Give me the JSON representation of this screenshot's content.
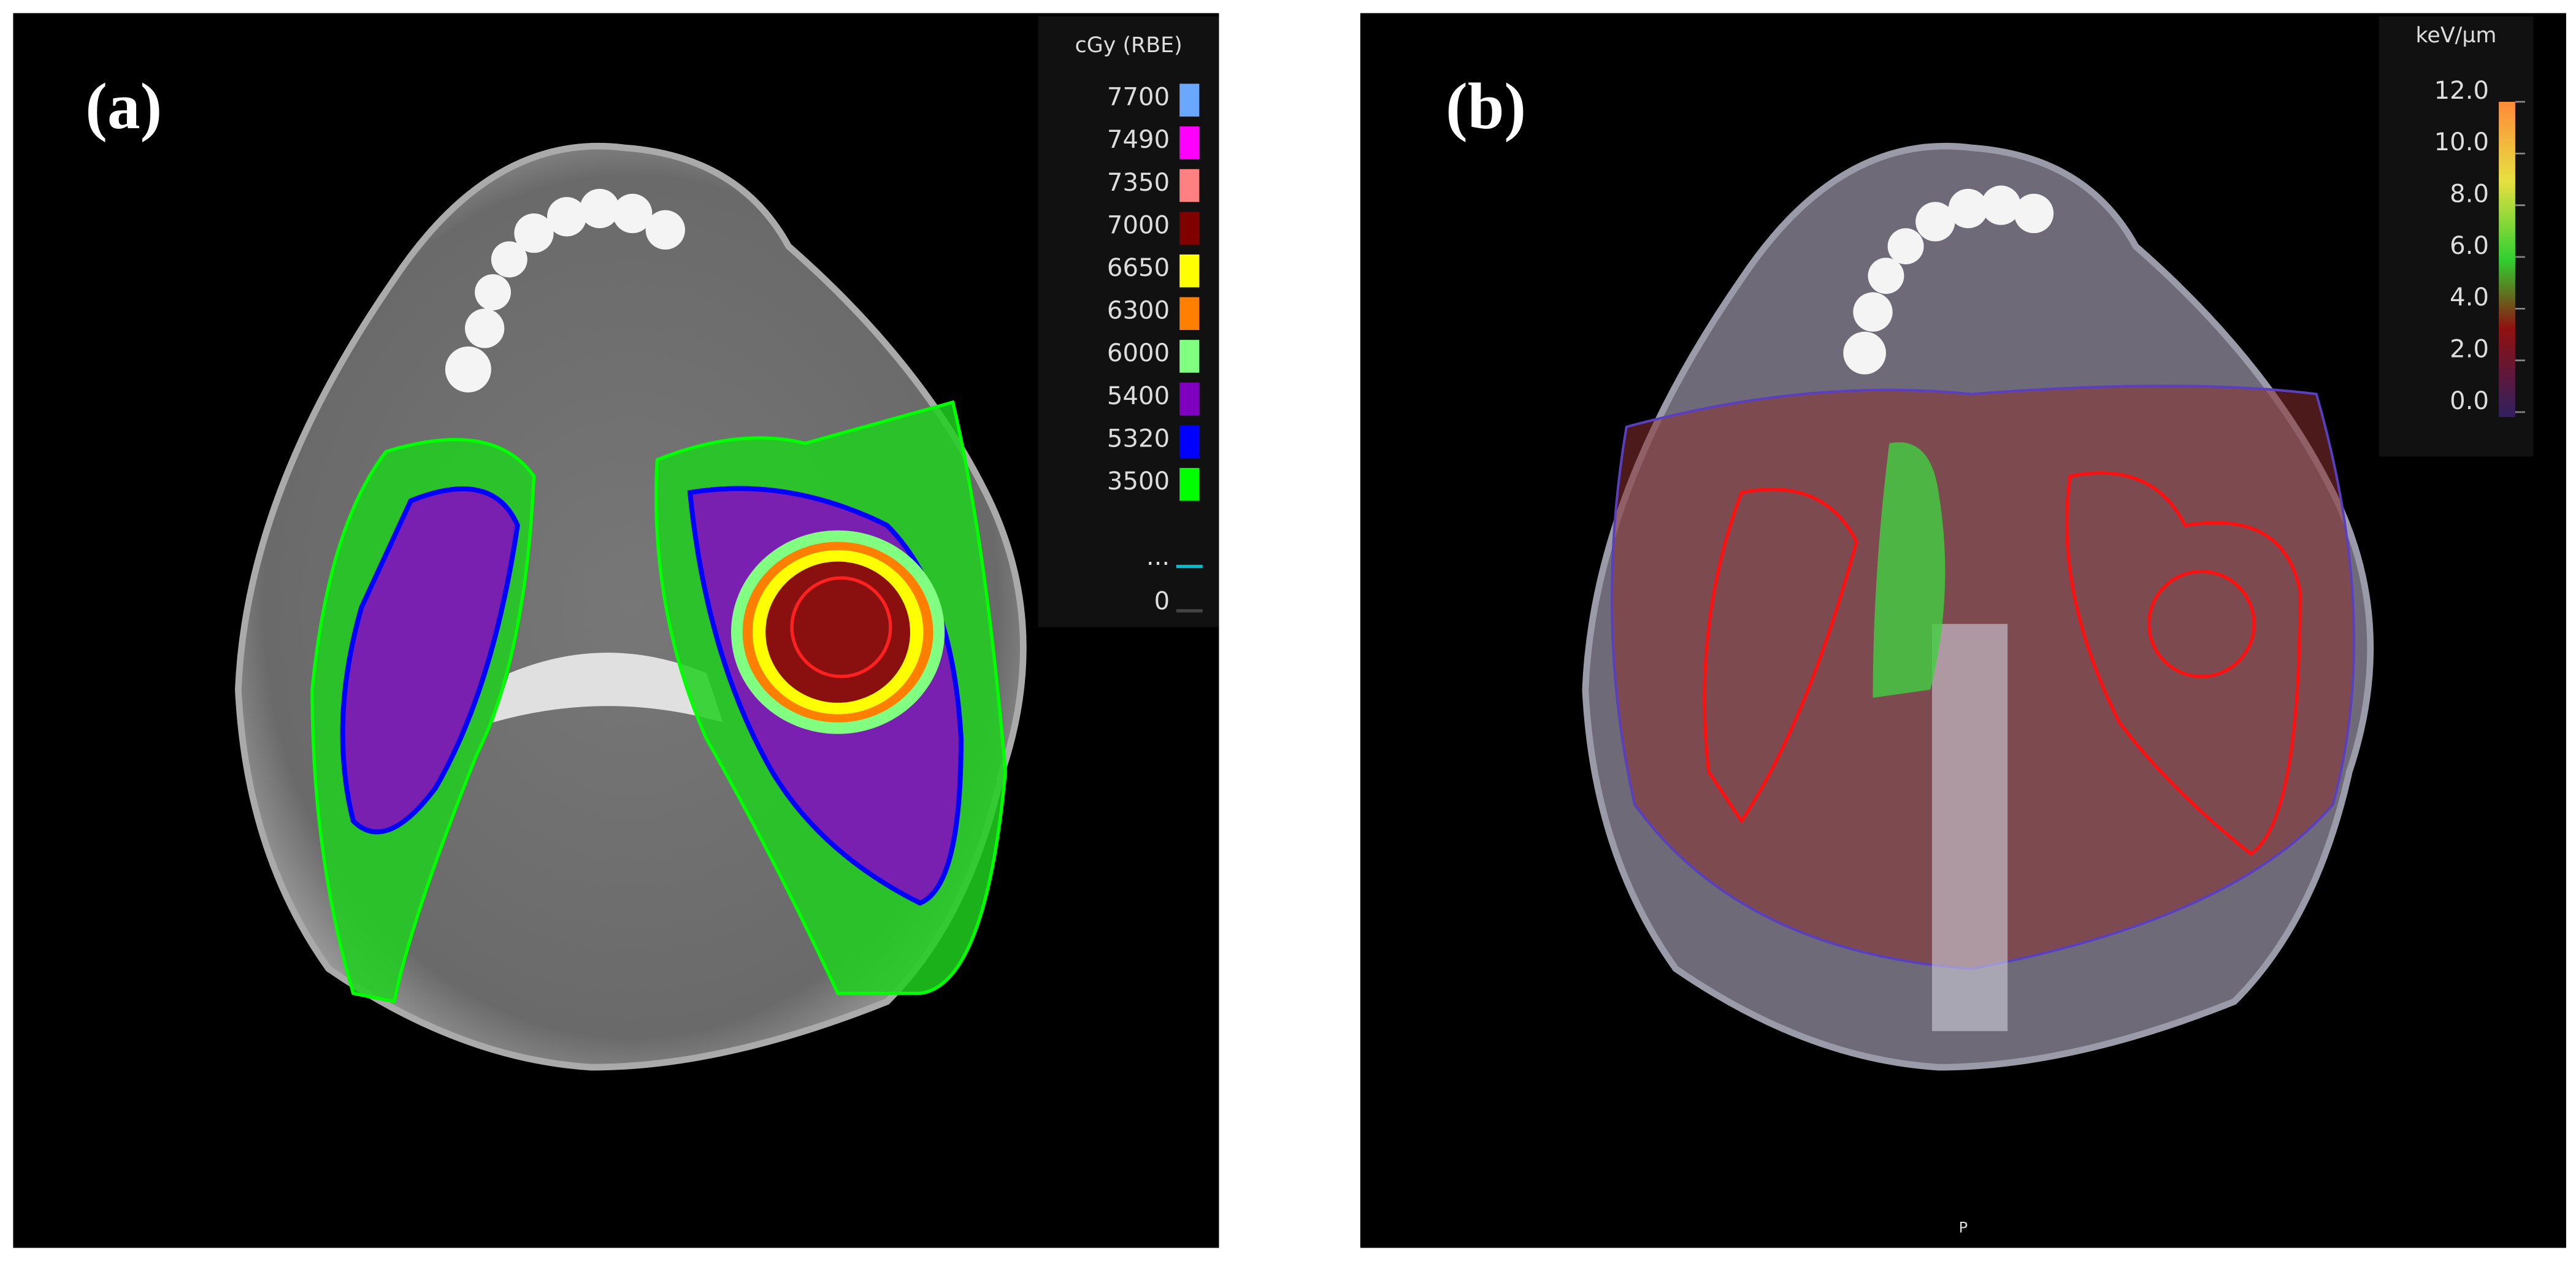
{
  "panels": [
    {
      "label": "(a)",
      "unit": "cGy (RBE)",
      "legend": [
        {
          "label": "7700",
          "color": "#6aa8ff"
        },
        {
          "label": "7490",
          "color": "#ff00ff"
        },
        {
          "label": "7350",
          "color": "#ff8080"
        },
        {
          "label": "7000",
          "color": "#800000"
        },
        {
          "label": "6650",
          "color": "#ffff00"
        },
        {
          "label": "6300",
          "color": "#ff8000"
        },
        {
          "label": "6000",
          "color": "#80ff80"
        },
        {
          "label": "5400",
          "color": "#8000c0"
        },
        {
          "label": "5320",
          "color": "#0000ff"
        },
        {
          "label": "3500",
          "color": "#00ff00"
        },
        {
          "label": "...",
          "color": "#00c0d0"
        },
        {
          "label": "0",
          "color": "#444444"
        }
      ]
    },
    {
      "label": "(b)",
      "unit": "keV/µm",
      "legend": [
        {
          "label": "12.0"
        },
        {
          "label": "10.0"
        },
        {
          "label": "8.0"
        },
        {
          "label": "6.0"
        },
        {
          "label": "4.0"
        },
        {
          "label": "2.0"
        },
        {
          "label": "0.0"
        }
      ],
      "orientation": "P"
    }
  ]
}
